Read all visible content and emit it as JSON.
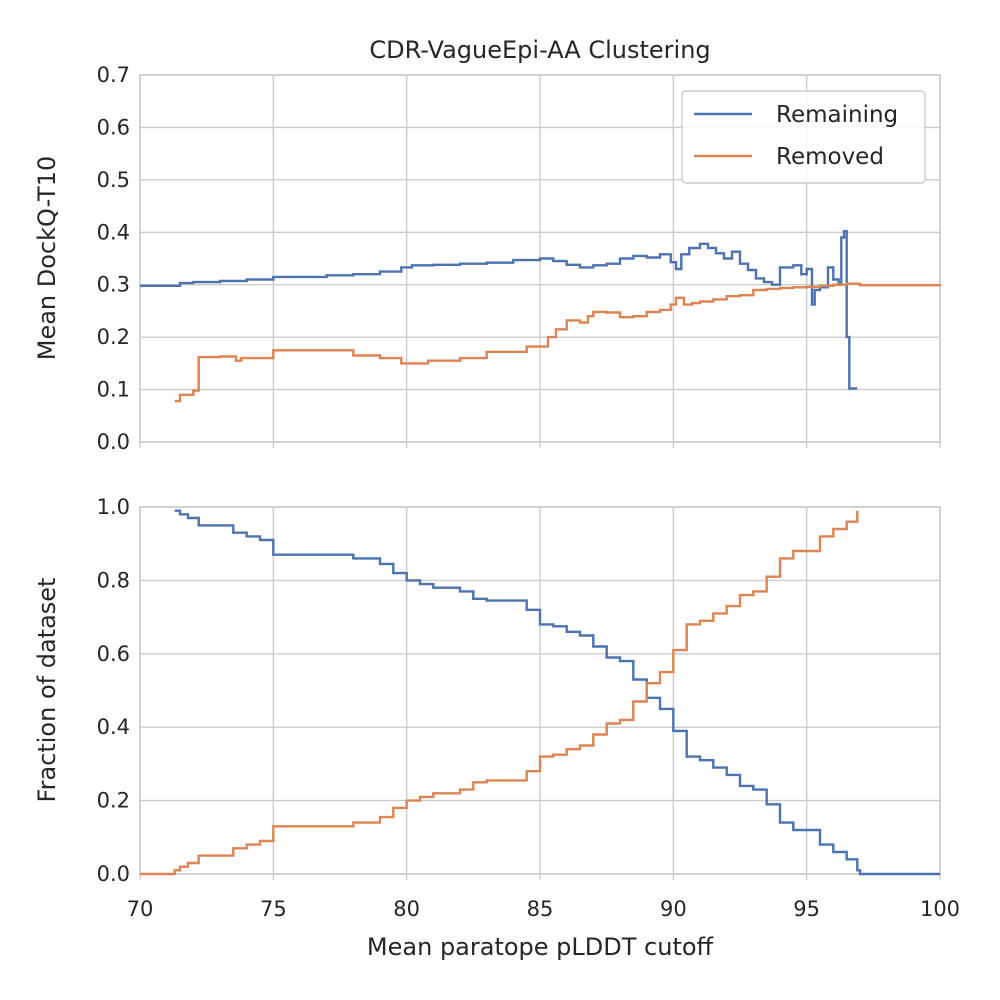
{
  "colors": {
    "remaining": "#4c72b0",
    "removed": "#dd8452",
    "grid": "#cccccc",
    "text": "#262626"
  },
  "chart_data": [
    {
      "type": "line",
      "title": "CDR-VagueEpi-AA Clustering",
      "xlabel": "",
      "ylabel": "Mean DockQ-T10",
      "xlim": [
        70,
        100
      ],
      "ylim": [
        0,
        0.7
      ],
      "xticks": [
        70,
        75,
        80,
        85,
        90,
        95,
        100
      ],
      "yticks": [
        "0.0",
        "0.1",
        "0.2",
        "0.3",
        "0.4",
        "0.5",
        "0.6",
        "0.7"
      ],
      "grid": true,
      "legend": {
        "placement": "top-right",
        "entries": [
          "Remaining",
          "Removed"
        ]
      },
      "series": [
        {
          "name": "Remaining",
          "x": [
            70.0,
            71.3,
            71.5,
            72.0,
            72.5,
            73.0,
            74.0,
            75.0,
            76.0,
            77.0,
            78.0,
            79.0,
            79.8,
            80.2,
            81.0,
            82.0,
            83.0,
            84.0,
            85.0,
            85.5,
            86.0,
            86.5,
            87.0,
            87.5,
            88.0,
            88.5,
            89.0,
            89.5,
            89.9,
            90.1,
            90.3,
            90.6,
            91.0,
            91.3,
            91.6,
            91.9,
            92.2,
            92.5,
            92.8,
            93.1,
            93.4,
            93.7,
            94.0,
            94.5,
            94.8,
            95.0,
            95.2,
            95.3,
            95.5,
            95.8,
            96.0,
            96.2,
            96.3,
            96.4,
            96.5,
            96.6,
            96.9
          ],
          "y": [
            0.298,
            0.298,
            0.303,
            0.305,
            0.305,
            0.307,
            0.31,
            0.315,
            0.315,
            0.318,
            0.32,
            0.325,
            0.333,
            0.337,
            0.338,
            0.34,
            0.342,
            0.347,
            0.35,
            0.345,
            0.338,
            0.333,
            0.337,
            0.34,
            0.35,
            0.355,
            0.352,
            0.358,
            0.343,
            0.33,
            0.358,
            0.37,
            0.378,
            0.37,
            0.36,
            0.35,
            0.363,
            0.34,
            0.328,
            0.312,
            0.305,
            0.3,
            0.333,
            0.337,
            0.32,
            0.33,
            0.262,
            0.29,
            0.295,
            0.333,
            0.31,
            0.3,
            0.39,
            0.402,
            0.2,
            0.102,
            0.102
          ]
        },
        {
          "name": "Removed",
          "x": [
            71.3,
            71.5,
            71.8,
            72.0,
            72.2,
            73.0,
            73.6,
            73.8,
            74.2,
            75.0,
            76.0,
            77.0,
            78.0,
            79.0,
            79.8,
            80.2,
            80.8,
            81.5,
            82.0,
            83.0,
            84.0,
            84.5,
            85.0,
            85.3,
            85.6,
            86.0,
            86.5,
            86.8,
            87.0,
            87.5,
            88.0,
            88.5,
            89.0,
            89.5,
            89.9,
            90.1,
            90.4,
            90.7,
            91.0,
            91.5,
            92.0,
            92.5,
            93.0,
            93.5,
            94.0,
            94.5,
            95.0,
            95.5,
            96.0,
            96.5,
            97.0,
            100.0
          ],
          "y": [
            0.078,
            0.09,
            0.09,
            0.098,
            0.162,
            0.163,
            0.155,
            0.16,
            0.16,
            0.175,
            0.175,
            0.175,
            0.165,
            0.16,
            0.15,
            0.15,
            0.155,
            0.155,
            0.16,
            0.172,
            0.172,
            0.182,
            0.182,
            0.2,
            0.215,
            0.232,
            0.228,
            0.24,
            0.248,
            0.247,
            0.238,
            0.24,
            0.248,
            0.252,
            0.262,
            0.275,
            0.262,
            0.265,
            0.268,
            0.272,
            0.278,
            0.28,
            0.29,
            0.292,
            0.294,
            0.295,
            0.296,
            0.298,
            0.3,
            0.302,
            0.299,
            0.298
          ]
        }
      ]
    },
    {
      "type": "line",
      "title": "",
      "xlabel": "Mean paratope pLDDT cutoff",
      "ylabel": "Fraction of dataset",
      "xlim": [
        70,
        100
      ],
      "ylim": [
        0,
        1
      ],
      "xticks": [
        70,
        75,
        80,
        85,
        90,
        95,
        100
      ],
      "yticks": [
        "0.0",
        "0.2",
        "0.4",
        "0.6",
        "0.8",
        "1.0"
      ],
      "grid": true,
      "series": [
        {
          "name": "Remaining",
          "x": [
            71.3,
            71.5,
            71.8,
            72.2,
            73.0,
            73.5,
            74.0,
            74.5,
            75.0,
            76.0,
            77.0,
            78.0,
            79.0,
            79.5,
            80.0,
            80.5,
            81.0,
            82.0,
            82.5,
            83.0,
            84.0,
            84.5,
            85.0,
            85.5,
            86.0,
            86.5,
            87.0,
            87.5,
            88.0,
            88.5,
            89.0,
            89.5,
            90.0,
            90.5,
            91.0,
            91.5,
            92.0,
            92.5,
            93.0,
            93.5,
            94.0,
            94.5,
            95.0,
            95.5,
            96.0,
            96.5,
            96.9,
            97.0,
            100.0
          ],
          "y": [
            0.99,
            0.98,
            0.97,
            0.95,
            0.95,
            0.93,
            0.92,
            0.91,
            0.87,
            0.87,
            0.87,
            0.86,
            0.845,
            0.82,
            0.8,
            0.79,
            0.78,
            0.77,
            0.75,
            0.745,
            0.745,
            0.72,
            0.68,
            0.675,
            0.66,
            0.65,
            0.62,
            0.59,
            0.58,
            0.53,
            0.48,
            0.45,
            0.39,
            0.32,
            0.31,
            0.29,
            0.27,
            0.24,
            0.23,
            0.19,
            0.14,
            0.12,
            0.12,
            0.08,
            0.06,
            0.04,
            0.01,
            0.0,
            0.0
          ]
        },
        {
          "name": "Removed",
          "x": [
            70.0,
            71.3,
            71.5,
            71.8,
            72.2,
            73.0,
            73.5,
            74.0,
            74.5,
            75.0,
            76.0,
            77.0,
            78.0,
            79.0,
            79.5,
            80.0,
            80.5,
            81.0,
            82.0,
            82.5,
            83.0,
            84.0,
            84.5,
            85.0,
            85.5,
            86.0,
            86.5,
            87.0,
            87.5,
            88.0,
            88.5,
            89.0,
            89.5,
            90.0,
            90.5,
            91.0,
            91.5,
            92.0,
            92.5,
            93.0,
            93.5,
            94.0,
            94.5,
            95.0,
            95.5,
            96.0,
            96.5,
            96.9
          ],
          "y": [
            0.0,
            0.01,
            0.02,
            0.03,
            0.05,
            0.05,
            0.07,
            0.08,
            0.09,
            0.13,
            0.13,
            0.13,
            0.14,
            0.155,
            0.18,
            0.2,
            0.21,
            0.22,
            0.23,
            0.25,
            0.255,
            0.255,
            0.28,
            0.32,
            0.325,
            0.34,
            0.35,
            0.38,
            0.41,
            0.42,
            0.47,
            0.52,
            0.55,
            0.61,
            0.68,
            0.69,
            0.71,
            0.73,
            0.76,
            0.77,
            0.81,
            0.86,
            0.88,
            0.88,
            0.92,
            0.94,
            0.96,
            0.99
          ]
        }
      ]
    }
  ]
}
